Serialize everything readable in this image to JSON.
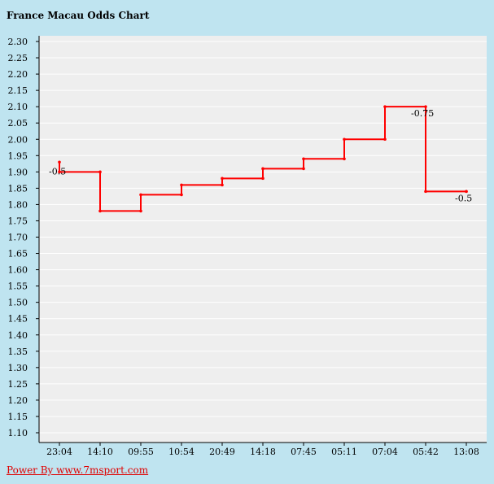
{
  "header": {
    "title": "France Macau Odds Chart"
  },
  "footer": {
    "link_text": "Power By www.7msport.com"
  },
  "colors": {
    "line": "#ff0000",
    "plot_bg": "#eeeeee",
    "page_bg": "#bfe4f0",
    "grid": "#ffffff"
  },
  "chart_data": {
    "type": "line",
    "step": true,
    "title": "France Macau Odds Chart",
    "xlabel": "",
    "ylabel": "",
    "ylim": [
      1.1,
      2.3
    ],
    "ytick_step": 0.05,
    "grid": true,
    "categories": [
      "23:04",
      "14:10",
      "09:55",
      "10:54",
      "20:49",
      "14:18",
      "07:45",
      "05:11",
      "07:04",
      "05:42",
      "13:08"
    ],
    "values": [
      1.9,
      1.78,
      1.83,
      1.86,
      1.88,
      1.91,
      1.94,
      2.0,
      2.1,
      1.84,
      1.84
    ],
    "start_value": 1.93,
    "annotations": [
      {
        "index": 0,
        "text": "-0.5"
      },
      {
        "index": 9,
        "text": "-0.75"
      },
      {
        "index": 10,
        "text": "-0.5"
      }
    ]
  }
}
